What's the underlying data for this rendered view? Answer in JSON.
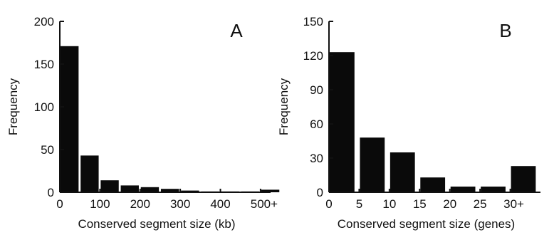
{
  "chart_data": [
    {
      "type": "bar",
      "panel_label": "A",
      "xlabel": "Conserved segment size (kb)",
      "ylabel": "Frequency",
      "ylim": [
        0,
        200
      ],
      "yticks": [
        0,
        50,
        100,
        150,
        200
      ],
      "xlim": [
        0,
        525
      ],
      "xticks": [
        {
          "value": 0,
          "label": "0"
        },
        {
          "value": 100,
          "label": "100"
        },
        {
          "value": 200,
          "label": "200"
        },
        {
          "value": 300,
          "label": "300"
        },
        {
          "value": 400,
          "label": "400"
        },
        {
          "value": 500,
          "label": "500+"
        }
      ],
      "bin_width": 50,
      "bar_fill": 0.9,
      "bins": [
        0,
        50,
        100,
        150,
        200,
        250,
        300,
        350,
        400,
        450,
        500
      ],
      "values": [
        171,
        43,
        14,
        8,
        6,
        4,
        2,
        1,
        1,
        1,
        3
      ],
      "grid": false
    },
    {
      "type": "bar",
      "panel_label": "B",
      "xlabel": "Conserved segment size (genes)",
      "ylabel": "Frequency",
      "ylim": [
        0,
        150
      ],
      "yticks": [
        0,
        30,
        60,
        90,
        120,
        150
      ],
      "xlim": [
        0,
        35
      ],
      "xticks": [
        {
          "value": 0,
          "label": "0"
        },
        {
          "value": 5,
          "label": "5"
        },
        {
          "value": 10,
          "label": "10"
        },
        {
          "value": 15,
          "label": "15"
        },
        {
          "value": 20,
          "label": "20"
        },
        {
          "value": 25,
          "label": "25"
        },
        {
          "value": 30,
          "label": "30+"
        }
      ],
      "bin_width": 5,
      "bar_fill": 0.82,
      "bins": [
        0,
        5,
        10,
        15,
        20,
        25,
        30
      ],
      "values": [
        123,
        48,
        35,
        13,
        5,
        5,
        23
      ],
      "grid": false
    }
  ]
}
